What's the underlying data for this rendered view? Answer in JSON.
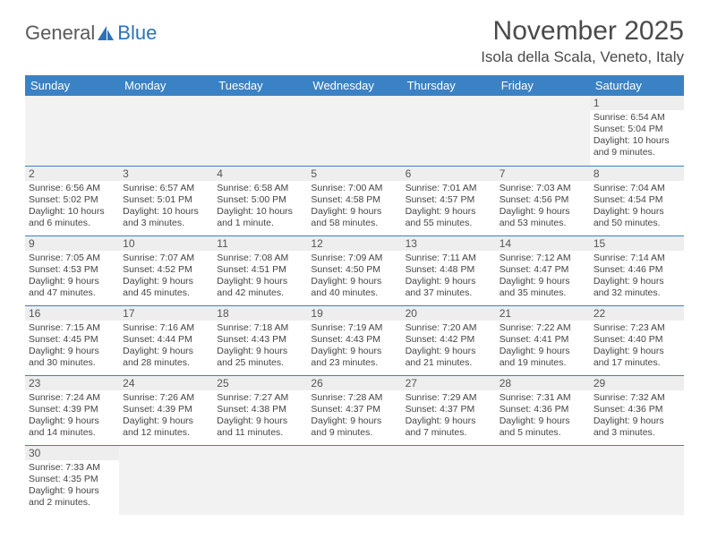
{
  "logo": {
    "text_general": "General",
    "text_blue": "Blue"
  },
  "title": "November 2025",
  "location": "Isola della Scala, Veneto, Italy",
  "colors": {
    "header_bg": "#3b82c4",
    "header_text": "#ffffff",
    "daynum_bg": "#eeeeee",
    "empty_bg": "#f2f2f2",
    "row_border": "#3b82c4",
    "text": "#3a3a3a",
    "logo_gray": "#5a5a5a",
    "logo_blue": "#2e72b8"
  },
  "weekdays": [
    "Sunday",
    "Monday",
    "Tuesday",
    "Wednesday",
    "Thursday",
    "Friday",
    "Saturday"
  ],
  "labels": {
    "sunrise": "Sunrise:",
    "sunset": "Sunset:",
    "daylight": "Daylight:"
  },
  "first_weekday_index": 6,
  "days": [
    {
      "n": 1,
      "sunrise": "6:54 AM",
      "sunset": "5:04 PM",
      "daylight": "10 hours and 9 minutes."
    },
    {
      "n": 2,
      "sunrise": "6:56 AM",
      "sunset": "5:02 PM",
      "daylight": "10 hours and 6 minutes."
    },
    {
      "n": 3,
      "sunrise": "6:57 AM",
      "sunset": "5:01 PM",
      "daylight": "10 hours and 3 minutes."
    },
    {
      "n": 4,
      "sunrise": "6:58 AM",
      "sunset": "5:00 PM",
      "daylight": "10 hours and 1 minute."
    },
    {
      "n": 5,
      "sunrise": "7:00 AM",
      "sunset": "4:58 PM",
      "daylight": "9 hours and 58 minutes."
    },
    {
      "n": 6,
      "sunrise": "7:01 AM",
      "sunset": "4:57 PM",
      "daylight": "9 hours and 55 minutes."
    },
    {
      "n": 7,
      "sunrise": "7:03 AM",
      "sunset": "4:56 PM",
      "daylight": "9 hours and 53 minutes."
    },
    {
      "n": 8,
      "sunrise": "7:04 AM",
      "sunset": "4:54 PM",
      "daylight": "9 hours and 50 minutes."
    },
    {
      "n": 9,
      "sunrise": "7:05 AM",
      "sunset": "4:53 PM",
      "daylight": "9 hours and 47 minutes."
    },
    {
      "n": 10,
      "sunrise": "7:07 AM",
      "sunset": "4:52 PM",
      "daylight": "9 hours and 45 minutes."
    },
    {
      "n": 11,
      "sunrise": "7:08 AM",
      "sunset": "4:51 PM",
      "daylight": "9 hours and 42 minutes."
    },
    {
      "n": 12,
      "sunrise": "7:09 AM",
      "sunset": "4:50 PM",
      "daylight": "9 hours and 40 minutes."
    },
    {
      "n": 13,
      "sunrise": "7:11 AM",
      "sunset": "4:48 PM",
      "daylight": "9 hours and 37 minutes."
    },
    {
      "n": 14,
      "sunrise": "7:12 AM",
      "sunset": "4:47 PM",
      "daylight": "9 hours and 35 minutes."
    },
    {
      "n": 15,
      "sunrise": "7:14 AM",
      "sunset": "4:46 PM",
      "daylight": "9 hours and 32 minutes."
    },
    {
      "n": 16,
      "sunrise": "7:15 AM",
      "sunset": "4:45 PM",
      "daylight": "9 hours and 30 minutes."
    },
    {
      "n": 17,
      "sunrise": "7:16 AM",
      "sunset": "4:44 PM",
      "daylight": "9 hours and 28 minutes."
    },
    {
      "n": 18,
      "sunrise": "7:18 AM",
      "sunset": "4:43 PM",
      "daylight": "9 hours and 25 minutes."
    },
    {
      "n": 19,
      "sunrise": "7:19 AM",
      "sunset": "4:43 PM",
      "daylight": "9 hours and 23 minutes."
    },
    {
      "n": 20,
      "sunrise": "7:20 AM",
      "sunset": "4:42 PM",
      "daylight": "9 hours and 21 minutes."
    },
    {
      "n": 21,
      "sunrise": "7:22 AM",
      "sunset": "4:41 PM",
      "daylight": "9 hours and 19 minutes."
    },
    {
      "n": 22,
      "sunrise": "7:23 AM",
      "sunset": "4:40 PM",
      "daylight": "9 hours and 17 minutes."
    },
    {
      "n": 23,
      "sunrise": "7:24 AM",
      "sunset": "4:39 PM",
      "daylight": "9 hours and 14 minutes."
    },
    {
      "n": 24,
      "sunrise": "7:26 AM",
      "sunset": "4:39 PM",
      "daylight": "9 hours and 12 minutes."
    },
    {
      "n": 25,
      "sunrise": "7:27 AM",
      "sunset": "4:38 PM",
      "daylight": "9 hours and 11 minutes."
    },
    {
      "n": 26,
      "sunrise": "7:28 AM",
      "sunset": "4:37 PM",
      "daylight": "9 hours and 9 minutes."
    },
    {
      "n": 27,
      "sunrise": "7:29 AM",
      "sunset": "4:37 PM",
      "daylight": "9 hours and 7 minutes."
    },
    {
      "n": 28,
      "sunrise": "7:31 AM",
      "sunset": "4:36 PM",
      "daylight": "9 hours and 5 minutes."
    },
    {
      "n": 29,
      "sunrise": "7:32 AM",
      "sunset": "4:36 PM",
      "daylight": "9 hours and 3 minutes."
    },
    {
      "n": 30,
      "sunrise": "7:33 AM",
      "sunset": "4:35 PM",
      "daylight": "9 hours and 2 minutes."
    }
  ]
}
